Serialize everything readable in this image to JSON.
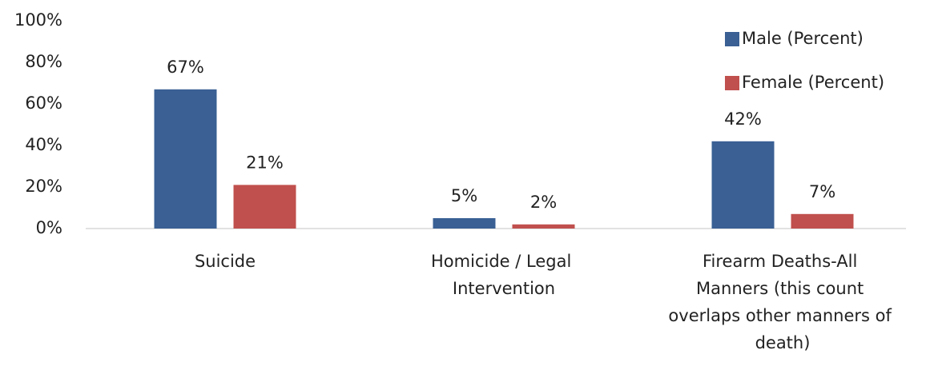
{
  "chart_data": {
    "type": "bar",
    "categories": [
      "Suicide",
      "Homicide / Legal Intervention",
      "Firearm Deaths-All Manners (this count overlaps other manners of death)"
    ],
    "series": [
      {
        "name": "Male (Percent)",
        "color": "#3a6094",
        "values": [
          67,
          5,
          42
        ],
        "value_labels": [
          "67%",
          "5%",
          "42%"
        ]
      },
      {
        "name": "Female (Percent)",
        "color": "#c0504d",
        "values": [
          21,
          2,
          7
        ],
        "value_labels": [
          "21%",
          "2%",
          "7%"
        ]
      }
    ],
    "ylim": [
      0,
      100
    ],
    "yticks": [
      {
        "value": 0,
        "label": "0%"
      },
      {
        "value": 20,
        "label": "20%"
      },
      {
        "value": 40,
        "label": "40%"
      },
      {
        "value": 60,
        "label": "60%"
      },
      {
        "value": 80,
        "label": "80%"
      },
      {
        "value": 100,
        "label": "100%"
      }
    ],
    "grid": false,
    "legend": "upper right"
  }
}
